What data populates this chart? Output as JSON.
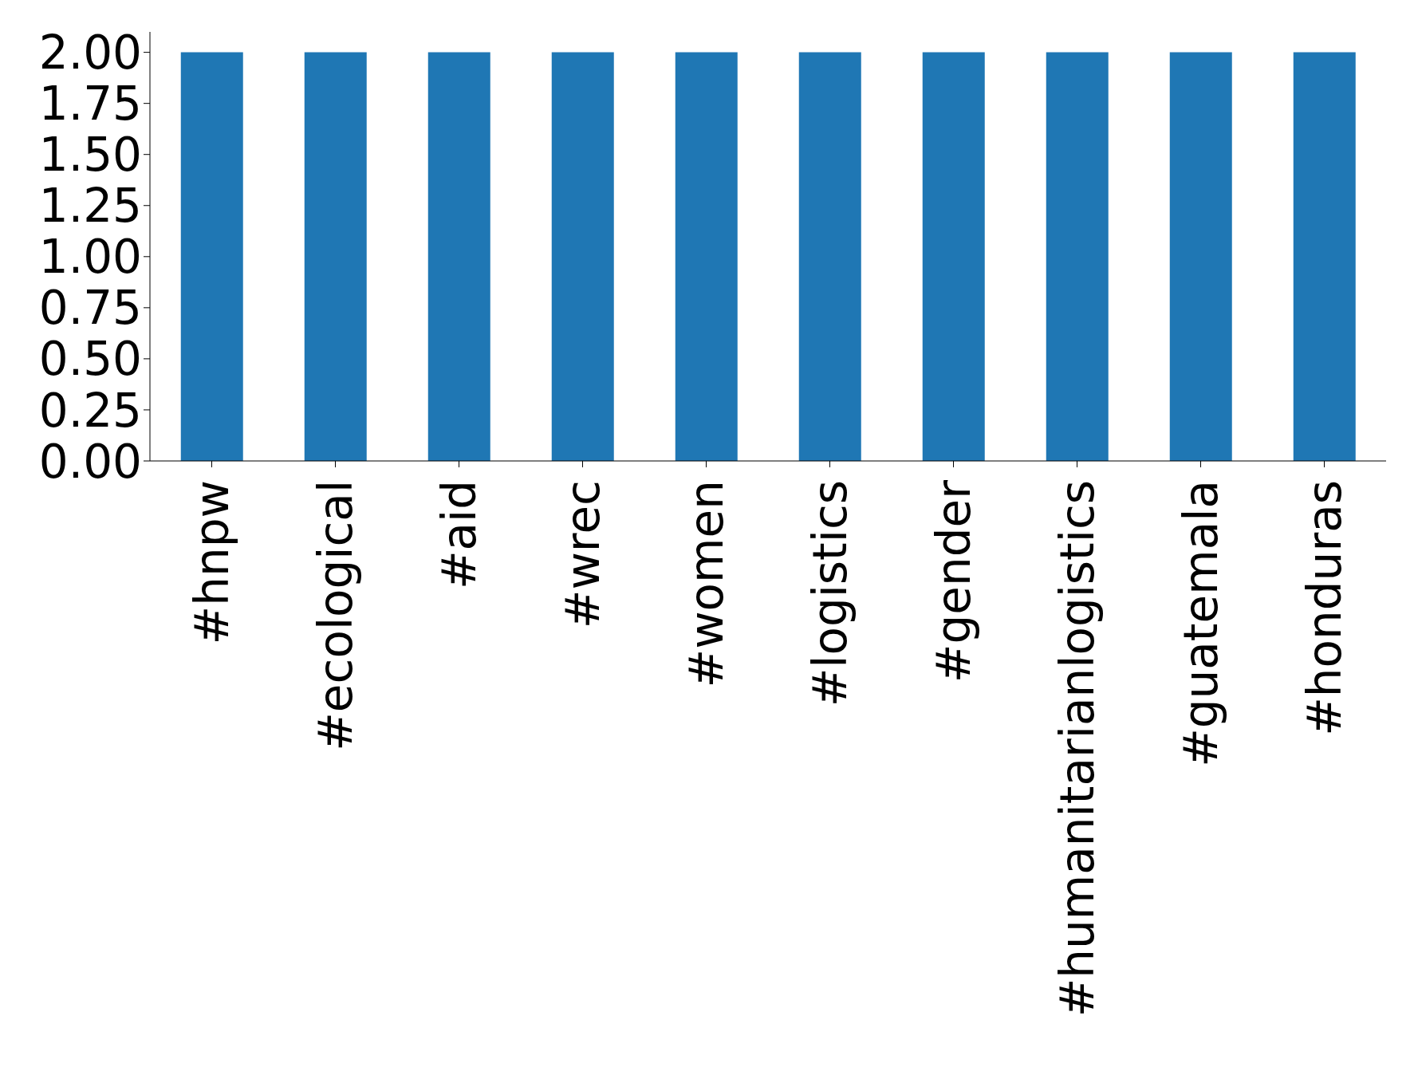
{
  "chart_data": {
    "type": "bar",
    "categories": [
      "#hnpw",
      "#ecological",
      "#aid",
      "#wrec",
      "#women",
      "#logistics",
      "#gender",
      "#humanitarianlogistics",
      "#guatemala",
      "#honduras"
    ],
    "values": [
      2,
      2,
      2,
      2,
      2,
      2,
      2,
      2,
      2,
      2
    ],
    "color": "#1f77b4",
    "ylim": [
      0,
      2.1
    ],
    "yticks": [
      {
        "value": 0,
        "label": "0.00"
      },
      {
        "value": 0.25,
        "label": "0.25"
      },
      {
        "value": 0.5,
        "label": "0.50"
      },
      {
        "value": 0.75,
        "label": "0.75"
      },
      {
        "value": 1,
        "label": "1.00"
      },
      {
        "value": 1.25,
        "label": "1.25"
      },
      {
        "value": 1.5,
        "label": "1.50"
      },
      {
        "value": 1.75,
        "label": "1.75"
      },
      {
        "value": 2,
        "label": "2.00"
      }
    ],
    "grid": false,
    "legend": false
  }
}
